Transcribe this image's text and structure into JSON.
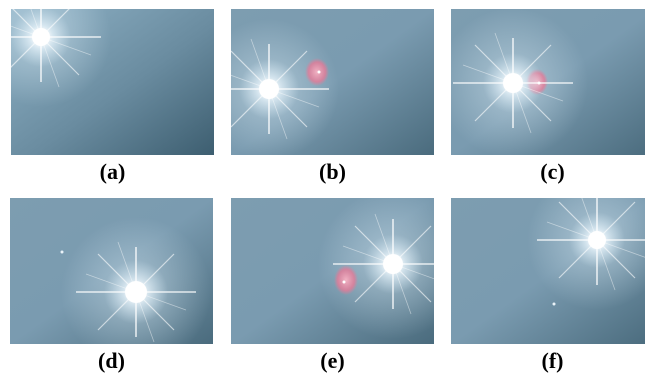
{
  "panels": [
    {
      "id": "a",
      "caption": "(a)"
    },
    {
      "id": "b",
      "caption": "(b)"
    },
    {
      "id": "c",
      "caption": "(c)"
    },
    {
      "id": "d",
      "caption": "(d)"
    },
    {
      "id": "e",
      "caption": "(e)"
    },
    {
      "id": "f",
      "caption": "(f)"
    }
  ],
  "colors": {
    "sky_light": "#8fb0c4",
    "sky_dark": "#3f6072",
    "sun_core": "#ffffff",
    "flare_pink": "#e87a9a",
    "caption_text": "#000000"
  }
}
